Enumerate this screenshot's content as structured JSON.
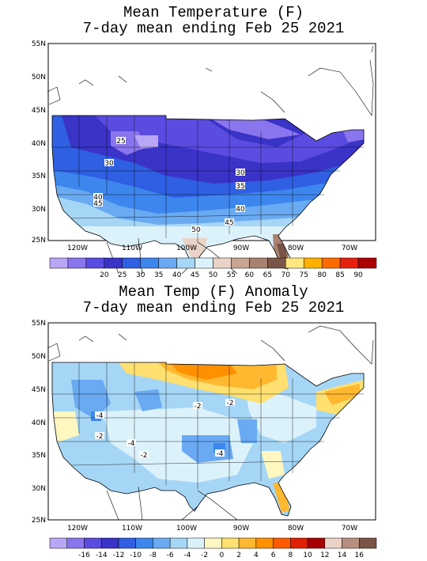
{
  "maps": [
    {
      "title_line1": "Mean Temperature (F)",
      "title_line2": "7-day mean ending Feb 25 2021",
      "lat_labels": [
        "55N",
        "50N",
        "45N",
        "40N",
        "35N",
        "30N",
        "25N"
      ],
      "lon_labels": [
        "120W",
        "110W",
        "100W",
        "90W",
        "80W",
        "70W"
      ],
      "contour_labels": [
        "25",
        "30",
        "30",
        "35",
        "40",
        "40",
        "45",
        "45",
        "50"
      ],
      "colorbar": {
        "colors": [
          "#b9a6f5",
          "#8a75ee",
          "#5a4ce0",
          "#3a33c8",
          "#2f5fe2",
          "#3d86ee",
          "#6aaaf2",
          "#a6d6f6",
          "#dcf2fb",
          "#ead3c6",
          "#c8a493",
          "#a98170",
          "#7a5446",
          "#ffe880",
          "#ffb000",
          "#ff6a00",
          "#e6200c",
          "#ad0000"
        ],
        "labels": [
          "20",
          "25",
          "30",
          "35",
          "40",
          "45",
          "50",
          "55",
          "60",
          "65",
          "70",
          "75",
          "80",
          "85",
          "90"
        ]
      }
    },
    {
      "title_line1": "Mean Temp (F) Anomaly",
      "title_line2": "7-day mean ending Feb 25 2021",
      "lat_labels": [
        "55N",
        "50N",
        "45N",
        "40N",
        "35N",
        "30N",
        "25N"
      ],
      "lon_labels": [
        "120W",
        "110W",
        "100W",
        "90W",
        "80W",
        "70W"
      ],
      "contour_labels": [
        "-4",
        "-2",
        "-4",
        "-2",
        "-4",
        "-2",
        "-2"
      ],
      "colorbar": {
        "colors": [
          "#b9a6f5",
          "#8a75ee",
          "#5a4ce0",
          "#3a33c8",
          "#2f5fe2",
          "#3d86ee",
          "#6aaaf2",
          "#a6d6f6",
          "#dcf2fb",
          "#fff7c0",
          "#ffe070",
          "#ffb830",
          "#ff9000",
          "#ff5a00",
          "#e02000",
          "#a80000",
          "#ead3c6",
          "#b88e80",
          "#7a5446"
        ],
        "labels": [
          "-16",
          "-14",
          "-12",
          "-10",
          "-8",
          "-6",
          "-4",
          "-2",
          "0",
          "2",
          "4",
          "6",
          "8",
          "10",
          "12",
          "14",
          "16"
        ]
      }
    }
  ]
}
